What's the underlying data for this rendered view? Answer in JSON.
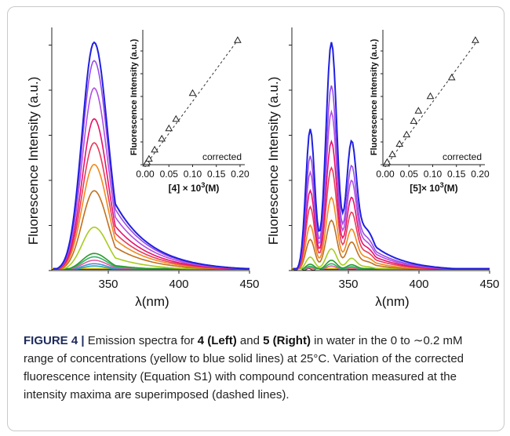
{
  "chart_data": [
    {
      "type": "line",
      "panel": "left",
      "ylabel": "Fluorescence Intensity (a.u.)",
      "xlabel": "λ(nm)",
      "xticks": [
        350,
        400,
        450
      ],
      "xlim": [
        310,
        450
      ],
      "ylim": [
        0,
        1.0
      ],
      "peak_nm": 340,
      "series_peaks": [
        0.02,
        0.03,
        0.045,
        0.06,
        0.075,
        0.19,
        0.35,
        0.465,
        0.56,
        0.665,
        0.8,
        0.92,
        1.0
      ],
      "inset": {
        "type": "scatter",
        "ylabel": "Fluorescence Intensity (a.u.)",
        "xlabel_bold": "[4]",
        "xlabel_rest": " × 10",
        "xlabel_sup": "3",
        "xlabel_unit": "(M)",
        "xticks": [
          "0.00",
          "0.05",
          "0.10",
          "0.15",
          "0.20"
        ],
        "xlim": [
          -0.005,
          0.21
        ],
        "ylim": [
          0,
          0.65
        ],
        "note": "corrected",
        "points": [
          {
            "x": 0.002,
            "y": 0.005
          },
          {
            "x": 0.004,
            "y": 0.012
          },
          {
            "x": 0.008,
            "y": 0.028
          },
          {
            "x": 0.02,
            "y": 0.072
          },
          {
            "x": 0.035,
            "y": 0.125
          },
          {
            "x": 0.05,
            "y": 0.175
          },
          {
            "x": 0.065,
            "y": 0.22
          },
          {
            "x": 0.1,
            "y": 0.345
          },
          {
            "x": 0.195,
            "y": 0.6
          }
        ],
        "fit": [
          [
            0.0,
            -0.005
          ],
          [
            0.195,
            0.6
          ]
        ]
      }
    },
    {
      "type": "line",
      "panel": "right",
      "ylabel": "Fluorescence Intensity (a.u.)",
      "xlabel": "λ(nm)",
      "xticks": [
        350,
        400,
        450
      ],
      "xlim": [
        310,
        450
      ],
      "ylim": [
        0,
        1.0
      ],
      "peak_nm": 338,
      "series_peaks": [
        0.02,
        0.03,
        0.045,
        0.095,
        0.22,
        0.32,
        0.45,
        0.565,
        0.695,
        0.81,
        1.0
      ],
      "inset": {
        "type": "scatter",
        "ylabel": "Fluorescence Intensity (a.u.)",
        "xlabel_bold": "[5]",
        "xlabel_rest": "× 10",
        "xlabel_sup": "3",
        "xlabel_unit": "(M)",
        "xticks": [
          "0.00",
          "0.05",
          "0.10",
          "0.15",
          "0.20"
        ],
        "xlim": [
          -0.005,
          0.21
        ],
        "ylim": [
          0,
          0.65
        ],
        "note": "corrected",
        "points": [
          {
            "x": 0.002,
            "y": 0.005
          },
          {
            "x": 0.004,
            "y": 0.012
          },
          {
            "x": 0.015,
            "y": 0.05
          },
          {
            "x": 0.03,
            "y": 0.1
          },
          {
            "x": 0.045,
            "y": 0.145
          },
          {
            "x": 0.06,
            "y": 0.21
          },
          {
            "x": 0.07,
            "y": 0.26
          },
          {
            "x": 0.095,
            "y": 0.33
          },
          {
            "x": 0.14,
            "y": 0.42
          },
          {
            "x": 0.19,
            "y": 0.6
          }
        ],
        "fit": [
          [
            0.0,
            -0.01
          ],
          [
            0.195,
            0.6
          ]
        ]
      }
    }
  ],
  "colors": {
    "series": [
      "#2aa7a7",
      "#4c8fd6",
      "#e25aa0",
      "#32b26a",
      "#2d9a2d",
      "#a7cc20",
      "#c07020",
      "#f08a1e",
      "#e83a58",
      "#e8106a",
      "#b050e0",
      "#9a4ce6",
      "#2020e0"
    ],
    "baseline_series": [
      "#1a1a1a",
      "#e0c000"
    ],
    "caption_label": "#1c2a5a"
  },
  "caption": {
    "label": "FIGURE 4 |",
    "t1": " Emission spectra for ",
    "b1": "4 (Left)",
    "t2": " and ",
    "b2": "5 (Right)",
    "t3": " in water in the 0 to ∼0.2 mM range of concentrations (yellow to blue solid lines) at 25°C. Variation of the corrected fluorescence intensity (Equation S1) with compound concentration measured at the intensity maxima are superimposed (dashed lines)."
  }
}
